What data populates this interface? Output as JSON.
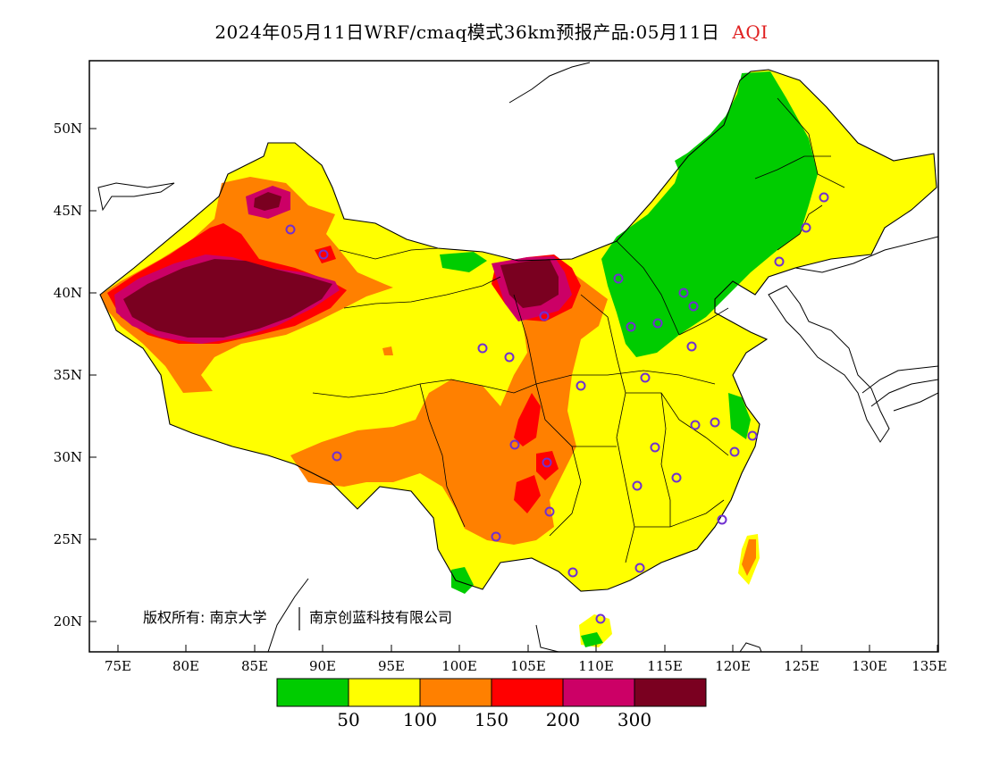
{
  "header": {
    "title_main": "2024年05月11日WRF/cmaq模式36km预报产品:05月11日",
    "title_highlight": "AQI"
  },
  "axes": {
    "lat_labels": [
      "50N",
      "45N",
      "40N",
      "35N",
      "30N",
      "25N",
      "20N"
    ],
    "lon_labels": [
      "75E",
      "80E",
      "85E",
      "90E",
      "95E",
      "100E",
      "105E",
      "110E",
      "115E",
      "120E",
      "125E",
      "130E",
      "135E"
    ]
  },
  "copyright": {
    "left": "版权所有: 南京大学",
    "right": "南京创蓝科技有限公司"
  },
  "legend": {
    "colors": [
      "#00cc00",
      "#ffff00",
      "#ff8000",
      "#ff0000",
      "#cc0066",
      "#7a0020"
    ],
    "tick_labels": [
      "50",
      "100",
      "150",
      "200",
      "300"
    ]
  },
  "colors": {
    "good": "#00cc00",
    "moderate": "#ffff00",
    "unhealthy_sensitive": "#ff8000",
    "unhealthy": "#ff0000",
    "very_unhealthy": "#cc0066",
    "hazardous": "#7a0020",
    "station_marker": "#7030d0",
    "title_highlight": "#e02020"
  }
}
